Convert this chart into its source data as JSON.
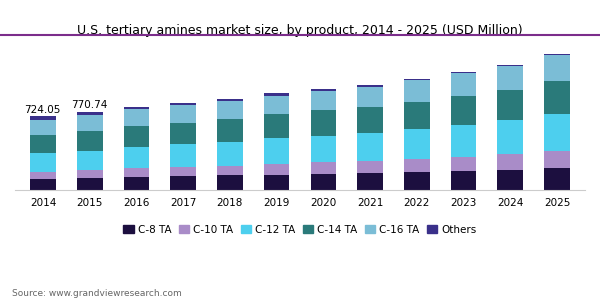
{
  "title": "U.S. tertiary amines market size, by product, 2014 - 2025 (USD Million)",
  "source": "Source: www.grandviewresearch.com",
  "years": [
    2014,
    2015,
    2016,
    2017,
    2018,
    2019,
    2020,
    2021,
    2022,
    2023,
    2024,
    2025
  ],
  "series": {
    "C-8 TA": [
      108,
      115,
      128,
      135,
      142,
      150,
      158,
      165,
      175,
      185,
      198,
      215
    ],
    "C-10 TA": [
      72,
      78,
      85,
      92,
      98,
      105,
      112,
      118,
      130,
      142,
      155,
      170
    ],
    "C-12 TA": [
      182,
      194,
      210,
      222,
      235,
      252,
      265,
      278,
      295,
      315,
      335,
      365
    ],
    "C-14 TA": [
      182,
      194,
      205,
      215,
      225,
      238,
      248,
      258,
      268,
      282,
      295,
      320
    ],
    "C-16 TA": [
      148,
      158,
      165,
      170,
      178,
      185,
      192,
      200,
      212,
      225,
      240,
      258
    ],
    "Others": [
      32,
      32,
      22,
      22,
      22,
      22,
      20,
      18,
      15,
      12,
      10,
      8
    ]
  },
  "colors": {
    "C-8 TA": "#1c0f3f",
    "C-10 TA": "#a98cc8",
    "C-12 TA": "#4dcfee",
    "C-14 TA": "#2a7a7a",
    "C-16 TA": "#7bbdd6",
    "Others": "#3a308a"
  },
  "segment_order": [
    "C-8 TA",
    "C-10 TA",
    "C-12 TA",
    "C-14 TA",
    "C-16 TA",
    "Others"
  ],
  "annotations": {
    "2014": "724.05",
    "2015": "770.74"
  },
  "bar_width": 0.55,
  "ylim": [
    0,
    1400
  ],
  "figsize": [
    6.0,
    3.0
  ],
  "dpi": 100,
  "background_color": "#ffffff",
  "title_fontsize": 9,
  "tick_fontsize": 7.5,
  "legend_fontsize": 7.5,
  "source_fontsize": 6.5,
  "annotation_fontsize": 7.5,
  "title_line_color": "#7b2d8b",
  "spine_bottom_color": "#cccccc"
}
